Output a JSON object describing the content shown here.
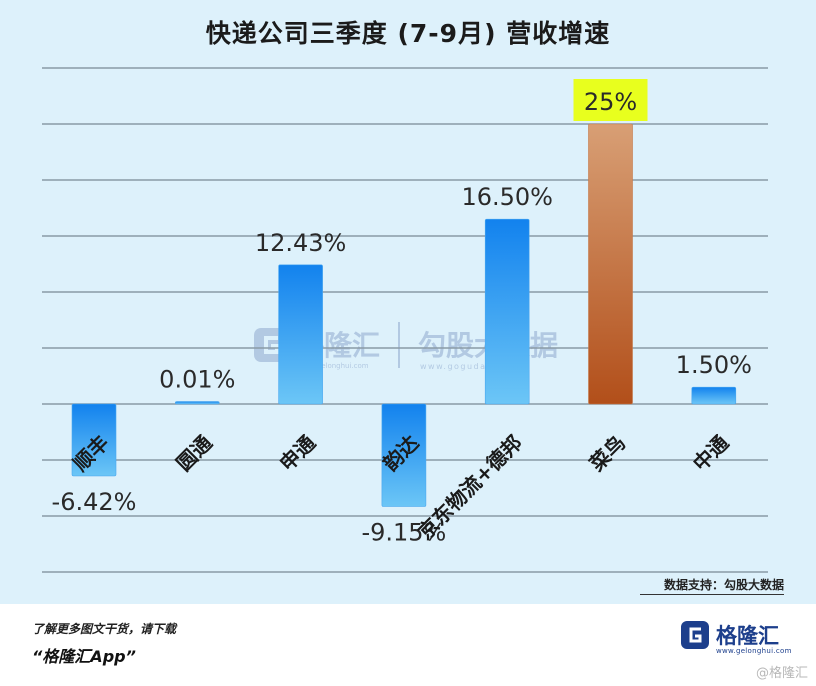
{
  "chart_data": {
    "type": "bar",
    "title": "快递公司三季度 (7-9月) 营收增速",
    "categories": [
      "顺丰",
      "圆通",
      "申通",
      "韵达",
      "京东物流+德邦",
      "菜鸟",
      "中通"
    ],
    "values": [
      -6.42,
      0.01,
      12.43,
      -9.15,
      16.5,
      25,
      1.5
    ],
    "value_labels": [
      "-6.42%",
      "0.01%",
      "12.43%",
      "-9.15%",
      "16.50%",
      "25%",
      "1.50%"
    ],
    "highlight_category": "菜鸟",
    "colors": {
      "default_bar": "#1a8ff0",
      "highlight_bar": "#c1693a",
      "highlight_label_bg": "#e8ff1e",
      "background": "#ddf1fb",
      "gridline": "#8a9aa6"
    },
    "ylim": [
      -12,
      25
    ],
    "grid": true,
    "xlabel": "",
    "ylabel": ""
  },
  "source": "数据支持：勾股大数据",
  "footer": {
    "cta": "了解更多图文干货，请下载",
    "app": "“格隆汇App”"
  },
  "brand": {
    "name": "格隆汇",
    "url": "www.gelonghui.com",
    "corner": "@格隆汇"
  },
  "watermark": {
    "name1": "格隆汇",
    "url1": "www.gelonghui.com",
    "name2": "勾股大数据",
    "url2": "www.gogudata.com"
  }
}
